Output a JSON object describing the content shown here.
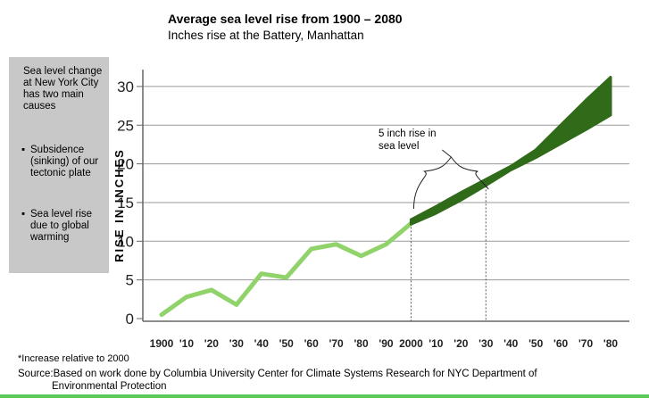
{
  "header": {
    "title": "Average sea level rise from 1900 – 2080",
    "subtitle": "Inches rise at the Battery, Manhattan"
  },
  "sidebar": {
    "intro": "Sea level change at New York City has two main causes",
    "bullets": [
      "Subsidence (sinking) of our tectonic plate",
      "Sea level rise due to global warming"
    ]
  },
  "footer": {
    "footnote": "*Increase relative to 2000",
    "source_line1": "Source:Based on work done by Columbia University Center for Climate Systems Research for NYC Department of",
    "source_line2": "Environmental Protection"
  },
  "chart_data": {
    "type": "line",
    "title": "Average sea level rise from 1900 – 2080",
    "subtitle": "Inches rise at the Battery, Manhattan",
    "ylabel": "RISE IN INCHES",
    "xlabel": "",
    "ylim": [
      0,
      32
    ],
    "yticks": [
      0,
      5,
      10,
      15,
      20,
      25,
      30
    ],
    "xlim": [
      1900,
      2080
    ],
    "xticks": [
      {
        "value": 1900,
        "label": "1900"
      },
      {
        "value": 1910,
        "label": "'10"
      },
      {
        "value": 1920,
        "label": "'20"
      },
      {
        "value": 1930,
        "label": "'30"
      },
      {
        "value": 1940,
        "label": "'40"
      },
      {
        "value": 1950,
        "label": "'50"
      },
      {
        "value": 1960,
        "label": "'60"
      },
      {
        "value": 1970,
        "label": "'70"
      },
      {
        "value": 1980,
        "label": "'80"
      },
      {
        "value": 1990,
        "label": "'90"
      },
      {
        "value": 2000,
        "label": "2000"
      },
      {
        "value": 2010,
        "label": "'10"
      },
      {
        "value": 2020,
        "label": "'20"
      },
      {
        "value": 2030,
        "label": "'30"
      },
      {
        "value": 2040,
        "label": "'40"
      },
      {
        "value": 2050,
        "label": "'50"
      },
      {
        "value": 2060,
        "label": "'60"
      },
      {
        "value": 2070,
        "label": "'70"
      },
      {
        "value": 2080,
        "label": "'80"
      }
    ],
    "grid": true,
    "series": [
      {
        "kind": "observed",
        "color": "#8fd36a",
        "x": [
          1900,
          1910,
          1920,
          1930,
          1940,
          1950,
          1960,
          1970,
          1980,
          1990,
          2000
        ],
        "y": [
          0.5,
          2.8,
          3.7,
          1.8,
          5.8,
          5.3,
          9.0,
          9.6,
          8.1,
          9.6,
          12.3
        ]
      },
      {
        "kind": "projected-range",
        "color": "#2f6b18",
        "x": [
          2000,
          2010,
          2020,
          2030,
          2040,
          2050,
          2060,
          2070,
          2080
        ],
        "low": [
          12.2,
          13.6,
          15.3,
          17.2,
          19.2,
          20.8,
          22.6,
          24.4,
          26.3
        ],
        "high": [
          12.8,
          14.5,
          16.3,
          18.0,
          19.7,
          21.8,
          25.0,
          28.2,
          31.2
        ]
      }
    ],
    "annotations": [
      {
        "text_lines": [
          "5 inch rise in",
          "sea level"
        ],
        "from_year": 2000,
        "to_year": 2030
      }
    ]
  }
}
